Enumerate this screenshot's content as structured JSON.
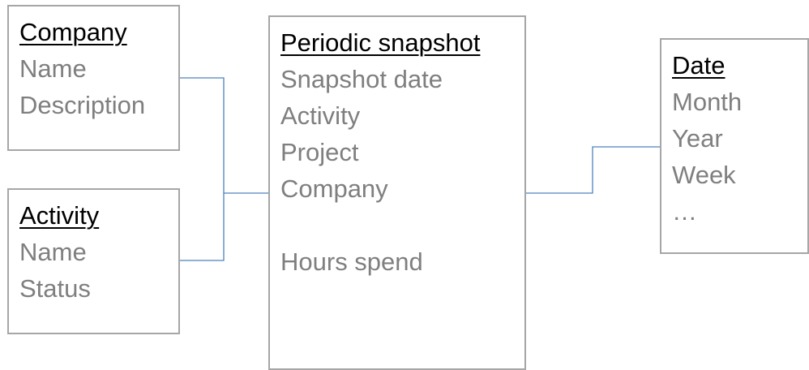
{
  "colors": {
    "box_border": "#a6a6a6",
    "title_text": "#000000",
    "field_text": "#7f7f7f",
    "connector": "#4f81bd"
  },
  "entities": {
    "company": {
      "title": "Company",
      "fields": [
        "Name",
        "Description"
      ]
    },
    "activity": {
      "title": "Activity",
      "fields": [
        "Name",
        "Status"
      ]
    },
    "snapshot": {
      "title": "Periodic snapshot",
      "fields": [
        "Snapshot date",
        "Activity",
        "Project",
        "Company",
        "",
        "Hours spend"
      ]
    },
    "date": {
      "title": "Date",
      "fields": [
        "Month",
        "Year",
        "Week",
        "…"
      ]
    }
  }
}
